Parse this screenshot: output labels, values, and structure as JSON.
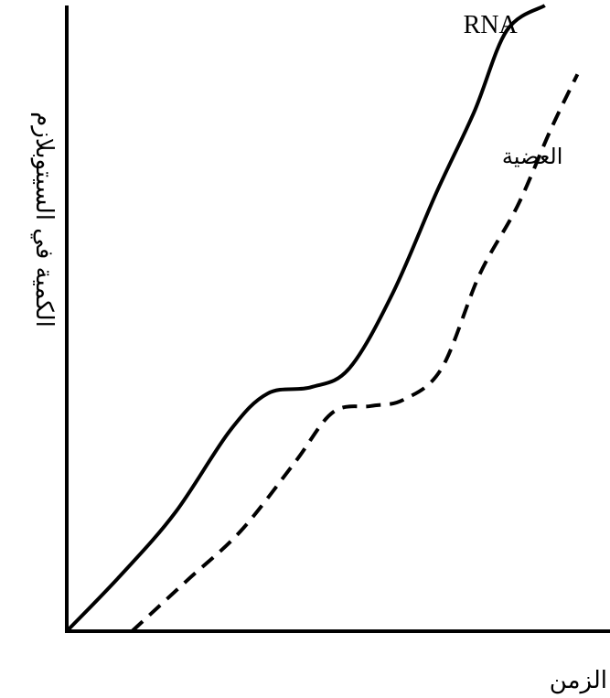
{
  "chart_data": {
    "type": "line",
    "title": "",
    "xlabel": "الزمن",
    "ylabel": "الكمية في السيتوبلازم",
    "x_range": [
      0,
      10
    ],
    "y_range": [
      0,
      10
    ],
    "grid": false,
    "series": [
      {
        "name": "RNA",
        "style": "solid",
        "color": "#000000",
        "x": [
          0,
          1.0,
          2.0,
          3.0,
          3.7,
          4.5,
          5.2,
          6.0,
          6.8,
          7.5,
          8.1,
          8.8
        ],
        "y": [
          0,
          0.9,
          1.9,
          3.2,
          3.8,
          3.9,
          4.2,
          5.4,
          7.0,
          8.3,
          9.6,
          10.0
        ]
      },
      {
        "name": "العضية",
        "style": "dashed",
        "color": "#000000",
        "x": [
          1.2,
          2.2,
          3.2,
          4.2,
          4.9,
          5.6,
          6.2,
          6.9,
          7.6,
          8.3,
          8.9,
          9.4
        ],
        "y": [
          0,
          0.8,
          1.6,
          2.7,
          3.5,
          3.6,
          3.7,
          4.2,
          5.7,
          6.8,
          8.0,
          8.9
        ]
      }
    ]
  }
}
